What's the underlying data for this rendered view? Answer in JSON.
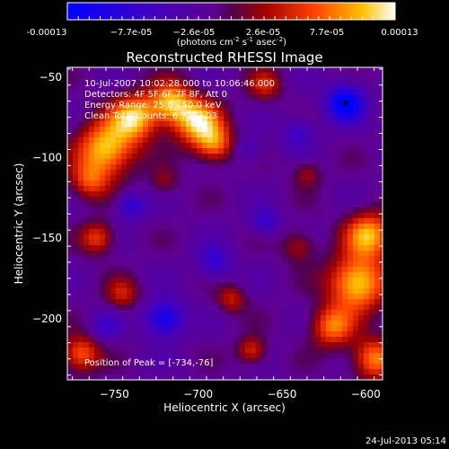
{
  "colorbar": {
    "tick_labels": [
      "-0.00013",
      "−7.7e-05",
      "−2.6e-05",
      "2.6e-05",
      "7.7e-05",
      "0.00013"
    ],
    "units_main": "(photons cm",
    "units_sup1": "-2",
    "units_mid": " s",
    "units_sup2": "-1",
    "units_end": " asec",
    "units_sup3": "-2",
    "units_close": ")",
    "range": [
      -0.00013,
      0.00013
    ]
  },
  "annotations": {
    "time_range": "10-Jul-2007 10:02:28.000 to 10:06:46.000",
    "detectors": "Detectors: 4F 5F 6F 7F 8F, Att 0",
    "energy": "Energy Range: 25.0 - 50.0 keV",
    "clean_counts": "Clean    Total counts: 6.72E+03",
    "peak": "Position of Peak = [-734,-76]"
  },
  "footer": {
    "date": "24-Jul-2013 05:14"
  },
  "chart_data": {
    "type": "heatmap",
    "title": "Reconstructed RHESSI Image",
    "xlabel": "Heliocentric X (arcsec)",
    "ylabel": "Heliocentric Y (arcsec)",
    "xlim": [
      -778,
      -590
    ],
    "ylim": [
      -238,
      -44
    ],
    "xticks": [
      -750,
      -700,
      -650,
      -600
    ],
    "yticks": [
      -50,
      -100,
      -150,
      -200
    ],
    "colorscale_range": [
      -0.00013,
      0.00013
    ],
    "marker": {
      "x": -612,
      "y": -66
    },
    "blobs": [
      {
        "x": -755,
        "y": -95,
        "v": 1.0,
        "s": 12
      },
      {
        "x": -738,
        "y": -75,
        "v": 0.95,
        "s": 10
      },
      {
        "x": -716,
        "y": -66,
        "v": 0.9,
        "s": 9
      },
      {
        "x": -700,
        "y": -78,
        "v": 0.95,
        "s": 10
      },
      {
        "x": -690,
        "y": -92,
        "v": 0.7,
        "s": 8
      },
      {
        "x": -765,
        "y": -115,
        "v": 0.55,
        "s": 8
      },
      {
        "x": -760,
        "y": -150,
        "v": 0.6,
        "s": 7
      },
      {
        "x": -745,
        "y": -185,
        "v": 0.45,
        "s": 7
      },
      {
        "x": -770,
        "y": -222,
        "v": 0.7,
        "s": 8
      },
      {
        "x": -680,
        "y": -188,
        "v": 0.45,
        "s": 6
      },
      {
        "x": -668,
        "y": -220,
        "v": 0.55,
        "s": 6
      },
      {
        "x": -660,
        "y": -55,
        "v": 0.45,
        "s": 7
      },
      {
        "x": -635,
        "y": -110,
        "v": 0.35,
        "s": 6
      },
      {
        "x": -605,
        "y": -178,
        "v": 1.05,
        "s": 12
      },
      {
        "x": -598,
        "y": -148,
        "v": 0.9,
        "s": 10
      },
      {
        "x": -620,
        "y": -205,
        "v": 0.75,
        "s": 9
      },
      {
        "x": -595,
        "y": -225,
        "v": 0.8,
        "s": 9
      },
      {
        "x": -640,
        "y": -155,
        "v": 0.4,
        "s": 7
      },
      {
        "x": -720,
        "y": -115,
        "v": 0.3,
        "s": 6
      },
      {
        "x": -612,
        "y": -66,
        "v": -0.95,
        "s": 8
      },
      {
        "x": -720,
        "y": -200,
        "v": -0.8,
        "s": 8
      },
      {
        "x": -690,
        "y": -165,
        "v": -0.5,
        "s": 7
      },
      {
        "x": -740,
        "y": -130,
        "v": -0.55,
        "s": 6
      },
      {
        "x": -660,
        "y": -140,
        "v": -0.45,
        "s": 6
      },
      {
        "x": -640,
        "y": -85,
        "v": -0.4,
        "s": 7
      },
      {
        "x": -670,
        "y": -95,
        "v": -0.3,
        "s": 6
      },
      {
        "x": -755,
        "y": -205,
        "v": -0.35,
        "s": 6
      }
    ]
  }
}
